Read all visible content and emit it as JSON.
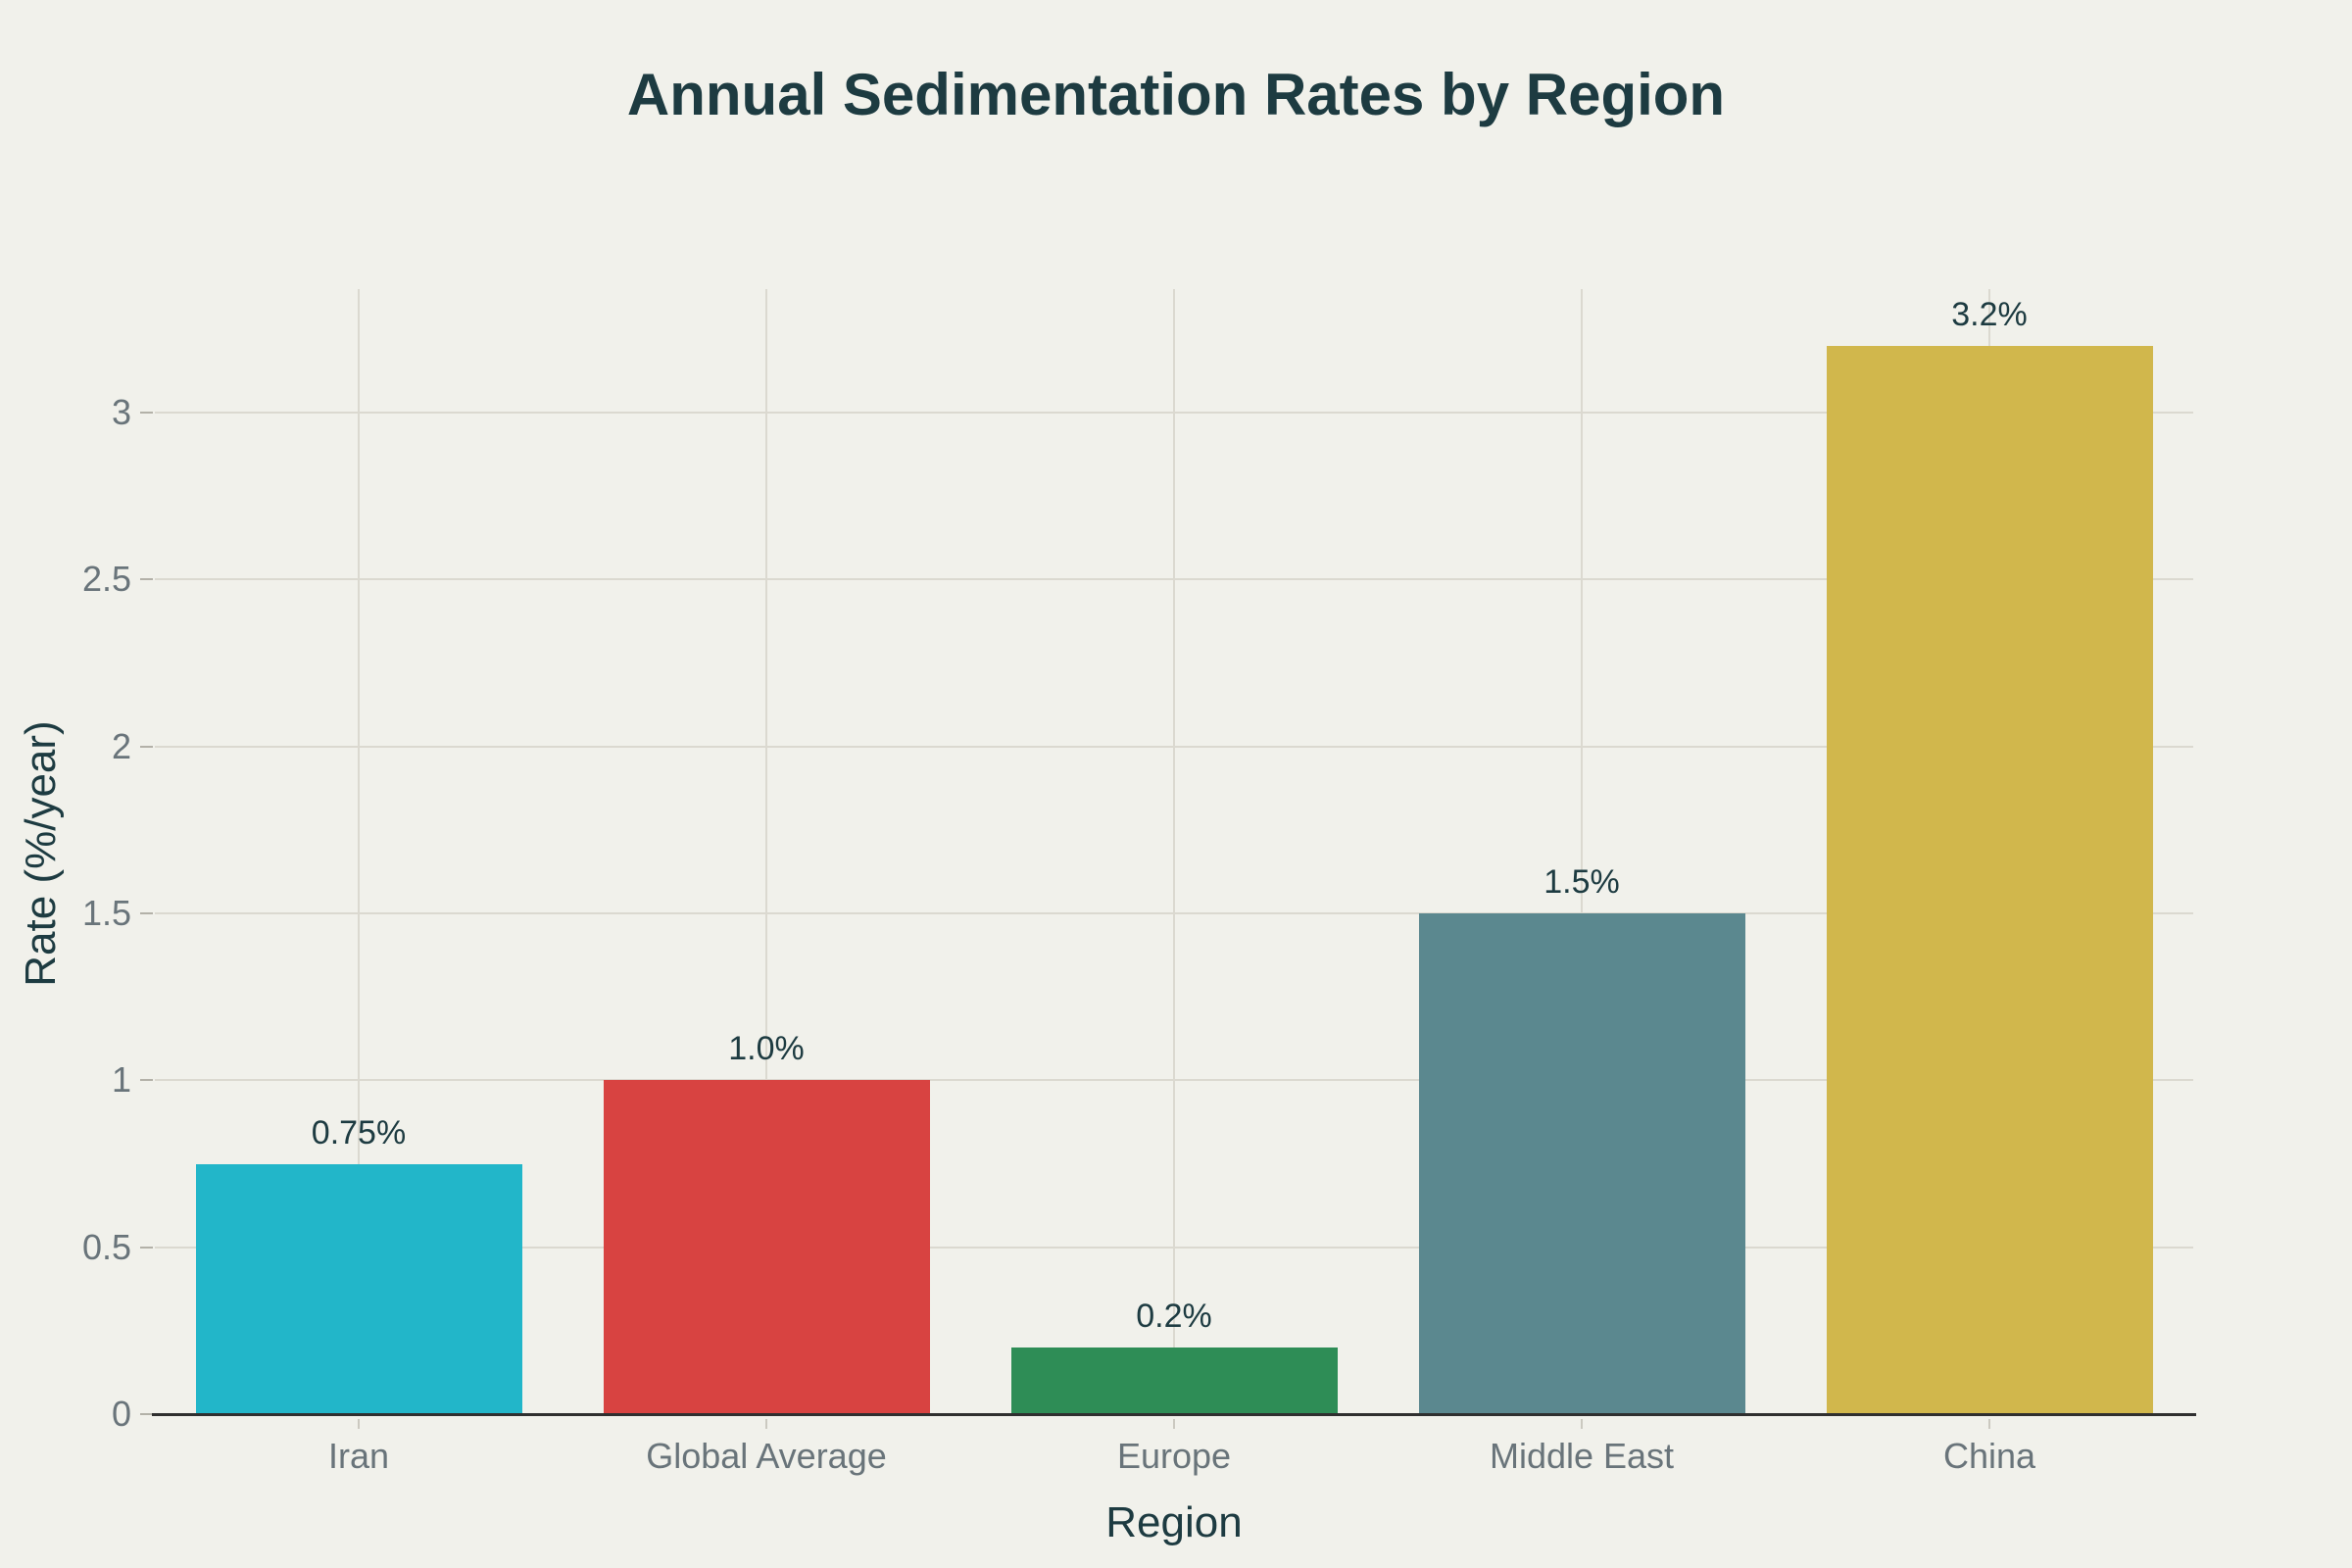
{
  "page": {
    "background": "#f1f1eb",
    "text_dark": "#1d3b41",
    "text_gray": "#69747a",
    "grid_color": "#dbd9d0",
    "axis_color": "#2f2f2f",
    "ytick_mark_color": "#b3b1a8",
    "xtick_mark_color": "#cbc9c0"
  },
  "chart_data": {
    "type": "bar",
    "title": "Annual Sedimentation Rates by Region",
    "xlabel": "Region",
    "ylabel": "Rate (%/year)",
    "categories": [
      "Iran",
      "Global Average",
      "Europe",
      "Middle East",
      "China"
    ],
    "values": [
      0.75,
      1.0,
      0.2,
      1.5,
      3.2
    ],
    "value_labels": [
      "0.75%",
      "1.0%",
      "0.2%",
      "1.5%",
      "3.2%"
    ],
    "bar_colors": [
      "#22b6c9",
      "#d84341",
      "#2e8d56",
      "#5b888f",
      "#d1b74c"
    ],
    "yticks": [
      0,
      0.5,
      1,
      1.5,
      2,
      2.5,
      3
    ],
    "ytick_labels": [
      "0",
      "0.5",
      "1",
      "1.5",
      "2",
      "2.5",
      "3"
    ],
    "ylim": [
      0,
      3.37
    ],
    "grid": true,
    "grid_vertical": true,
    "legend": "none",
    "bar_width_fraction": 0.8
  }
}
